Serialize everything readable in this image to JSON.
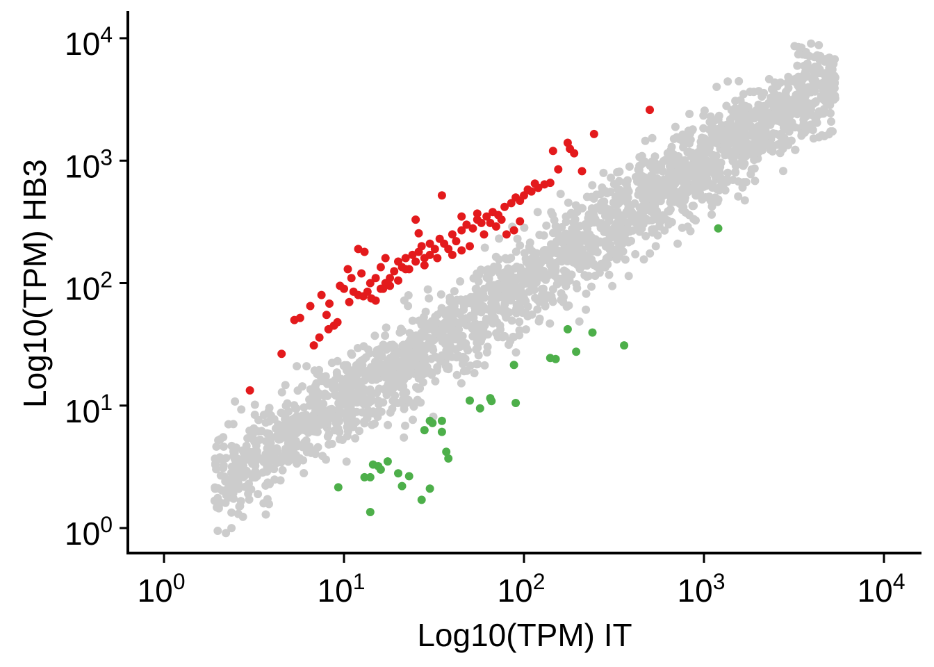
{
  "chart_data": {
    "type": "scatter",
    "xlabel": "Log10(TPM) IT",
    "ylabel": "Log10(TPM) HB3",
    "xscale": "log10",
    "yscale": "log10",
    "xlim": [
      0.65,
      16000
    ],
    "ylim": [
      0.65,
      16000
    ],
    "x_ticks": [
      {
        "value": 1,
        "base": "10",
        "exp": "0"
      },
      {
        "value": 10,
        "base": "10",
        "exp": "1"
      },
      {
        "value": 100,
        "base": "10",
        "exp": "2"
      },
      {
        "value": 1000,
        "base": "10",
        "exp": "3"
      },
      {
        "value": 10000,
        "base": "10",
        "exp": "4"
      }
    ],
    "y_ticks": [
      {
        "value": 1,
        "base": "10",
        "exp": "0"
      },
      {
        "value": 10,
        "base": "10",
        "exp": "1"
      },
      {
        "value": 100,
        "base": "10",
        "exp": "2"
      },
      {
        "value": 1000,
        "base": "10",
        "exp": "3"
      },
      {
        "value": 10000,
        "base": "10",
        "exp": "4"
      }
    ],
    "grid": false,
    "legend": "none",
    "colors": {
      "background_genes": "#cccccc",
      "up_in_HB3": "#e31a1c",
      "up_in_IT": "#4daf4a",
      "axis": "#000000"
    },
    "series": [
      {
        "color": "#e31a1c",
        "points": [
          [
            3.0,
            13.3
          ],
          [
            4.5,
            26.5
          ],
          [
            5.3,
            50
          ],
          [
            5.7,
            52
          ],
          [
            6.5,
            65
          ],
          [
            7.3,
            36
          ],
          [
            6.8,
            31
          ],
          [
            7.5,
            80
          ],
          [
            8.0,
            55
          ],
          [
            8.3,
            68
          ],
          [
            8.8,
            45
          ],
          [
            8.2,
            42
          ],
          [
            9.2,
            48
          ],
          [
            10.0,
            90
          ],
          [
            10.7,
            70
          ],
          [
            11.3,
            85
          ],
          [
            12.0,
            80
          ],
          [
            12.8,
            78
          ],
          [
            13.5,
            85
          ],
          [
            14.2,
            75
          ],
          [
            15.0,
            72
          ],
          [
            16.0,
            90
          ],
          [
            17.0,
            100
          ],
          [
            18.0,
            110
          ],
          [
            19.0,
            125
          ],
          [
            20.0,
            150
          ],
          [
            21.0,
            135
          ],
          [
            22.0,
            160
          ],
          [
            23.0,
            130
          ],
          [
            24.0,
            170
          ],
          [
            25.0,
            150
          ],
          [
            26.0,
            180
          ],
          [
            27.0,
            200
          ],
          [
            28.0,
            160
          ],
          [
            30.0,
            170
          ],
          [
            32.0,
            190
          ],
          [
            34.0,
            230
          ],
          [
            36.0,
            210
          ],
          [
            38.0,
            190
          ],
          [
            40.0,
            250
          ],
          [
            42.0,
            220
          ],
          [
            45.0,
            270
          ],
          [
            48.0,
            300
          ],
          [
            52.0,
            280
          ],
          [
            55.0,
            330
          ],
          [
            58.0,
            310
          ],
          [
            62.0,
            350
          ],
          [
            67.0,
            380
          ],
          [
            72.0,
            360
          ],
          [
            78.0,
            420
          ],
          [
            85.0,
            450
          ],
          [
            90.0,
            500
          ],
          [
            95.0,
            470
          ],
          [
            100.0,
            520
          ],
          [
            105.0,
            580
          ],
          [
            110.0,
            560
          ],
          [
            115.0,
            650
          ],
          [
            120.0,
            600
          ],
          [
            130.0,
            640
          ],
          [
            140.0,
            660
          ],
          [
            155.0,
            850
          ],
          [
            25.0,
            330
          ],
          [
            35.0,
            520
          ],
          [
            45.0,
            350
          ],
          [
            55.0,
            370
          ],
          [
            12.0,
            190
          ],
          [
            13.0,
            180
          ],
          [
            12.5,
            120
          ],
          [
            16.0,
            135
          ],
          [
            10.5,
            130
          ],
          [
            14.0,
            100
          ],
          [
            15.0,
            110
          ],
          [
            18.0,
            95
          ],
          [
            20.0,
            105
          ],
          [
            11.0,
            110
          ],
          [
            9.5,
            95
          ],
          [
            17.0,
            160
          ],
          [
            22.0,
            130
          ],
          [
            28.0,
            140
          ],
          [
            33.0,
            160
          ],
          [
            40.0,
            170
          ],
          [
            60.0,
            250
          ],
          [
            70.0,
            290
          ],
          [
            75.0,
            330
          ],
          [
            80.0,
            250
          ],
          [
            50.0,
            200
          ],
          [
            65.0,
            310
          ],
          [
            45.0,
            185
          ],
          [
            88.0,
            270
          ],
          [
            95.0,
            320
          ],
          [
            180.0,
            1250
          ],
          [
            175.0,
            1400
          ],
          [
            190.0,
            1150
          ],
          [
            245.0,
            1650
          ],
          [
            500.0,
            2600
          ],
          [
            145.0,
            1200
          ],
          [
            210.0,
            820
          ],
          [
            16.5,
            90
          ],
          [
            26.0,
            255
          ],
          [
            30.0,
            210
          ]
        ]
      },
      {
        "color": "#4daf4a",
        "points": [
          [
            9.3,
            2.15
          ],
          [
            13.0,
            2.6
          ],
          [
            14.0,
            1.35
          ],
          [
            14.0,
            2.6
          ],
          [
            14.5,
            3.3
          ],
          [
            15.5,
            3.2
          ],
          [
            16.0,
            3.0
          ],
          [
            17.5,
            3.5
          ],
          [
            20.0,
            2.8
          ],
          [
            21.0,
            2.2
          ],
          [
            23.0,
            2.65
          ],
          [
            27.0,
            1.7
          ],
          [
            28.0,
            6.3
          ],
          [
            30.0,
            2.1
          ],
          [
            30.0,
            7.5
          ],
          [
            31.0,
            7.2
          ],
          [
            35.0,
            7.5
          ],
          [
            35.0,
            6.1
          ],
          [
            37.0,
            4.2
          ],
          [
            38.0,
            3.7
          ],
          [
            50.0,
            11.0
          ],
          [
            57.0,
            9.5
          ],
          [
            65.0,
            11.5
          ],
          [
            66.0,
            10.9
          ],
          [
            88.0,
            21.5
          ],
          [
            90.0,
            10.5
          ],
          [
            140.0,
            24.5
          ],
          [
            150.0,
            24.0
          ],
          [
            175.0,
            42.0
          ],
          [
            195.0,
            27.5
          ],
          [
            240.0,
            39.5
          ],
          [
            360.0,
            31.0
          ],
          [
            1200.0,
            280.0
          ]
        ]
      }
    ]
  }
}
